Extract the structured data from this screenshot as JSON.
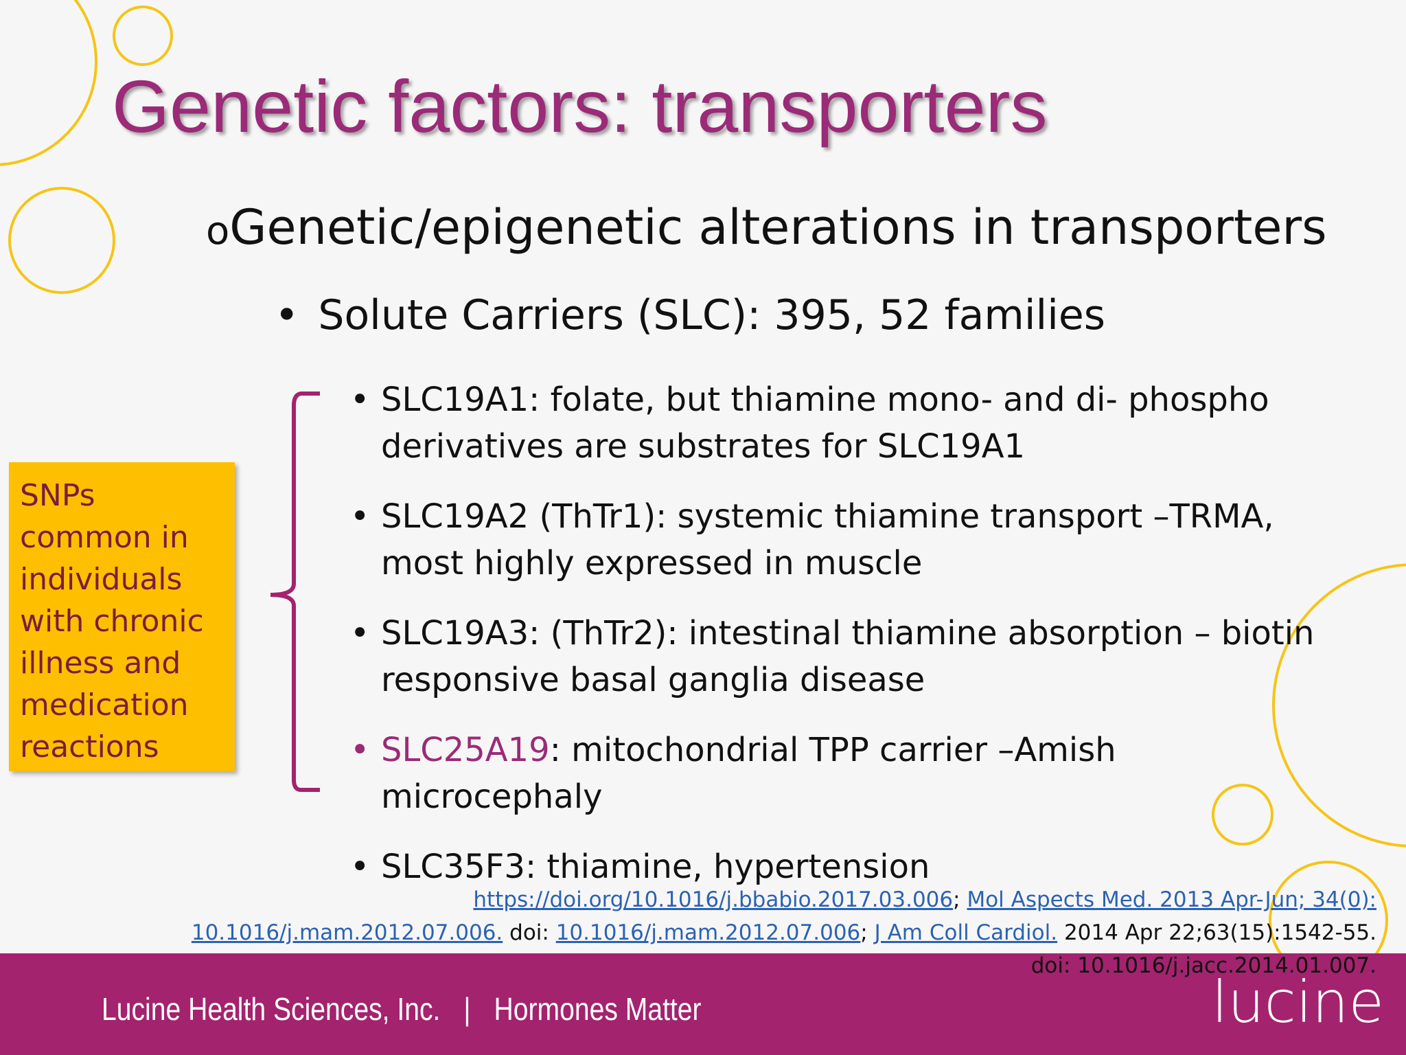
{
  "title": "Genetic factors: transporters",
  "heading": {
    "marker": "o",
    "text": "Genetic/epigenetic alterations in transporters"
  },
  "subheading": "Solute Carriers (SLC): 395, 52 families",
  "items": [
    {
      "text": "SLC19A1: folate, but thiamine mono- and di- phospho derivatives are substrates for SLC19A1"
    },
    {
      "text": "SLC19A2 (ThTr1): systemic thiamine transport –TRMA, most highly expressed in muscle"
    },
    {
      "text": "SLC19A3: (ThTr2): intestinal thiamine absorption – biotin responsive basal ganglia disease"
    },
    {
      "highlight": "SLC25A19",
      "text": ": mitochondrial TPP carrier –Amish microcephaly"
    },
    {
      "text": "SLC35F3: thiamine, hypertension"
    }
  ],
  "side_note": "SNPs common in individuals with chronic illness and medication reactions",
  "references": [
    {
      "text": "https://doi.org/10.1016/j.bbabio.2017.03.006",
      "link": true
    },
    {
      "text": "; ",
      "link": false
    },
    {
      "text": "Mol Aspects Med. 2013 Apr-Jun; 34(0): 10.1016/j.mam.2012.07.006.",
      "link": true
    },
    {
      "text": " doi:  ",
      "link": false
    },
    {
      "text": "10.1016/j.mam.2012.07.006",
      "link": true
    },
    {
      "text": "; ",
      "link": false
    },
    {
      "text": "J Am Coll Cardiol.",
      "link": true
    },
    {
      "text": " 2014 Apr 22;63(15):1542-55. doi: 10.1016/j.jacc.2014.01.007.",
      "link": false
    }
  ],
  "footer": {
    "left": "Lucine Health Sciences, Inc.",
    "separator": "|",
    "right": "Hormones Matter",
    "logo": "lucine"
  }
}
